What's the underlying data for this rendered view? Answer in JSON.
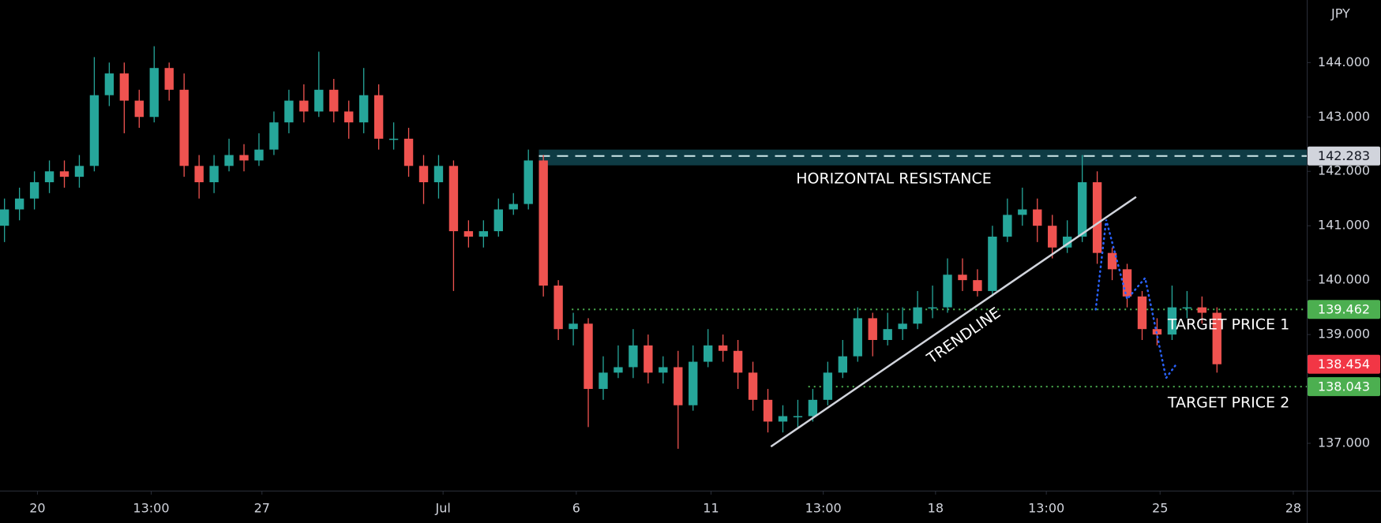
{
  "chart_data": {
    "type": "candlestick",
    "currency": "JPY",
    "up_color": "#26a69a",
    "down_color": "#ef5350",
    "open": [
      141.0,
      141.3,
      141.5,
      141.8,
      142.0,
      141.9,
      142.1,
      143.4,
      143.8,
      143.3,
      143.0,
      143.9,
      143.5,
      142.1,
      141.8,
      142.1,
      142.3,
      142.2,
      142.4,
      142.9,
      143.3,
      143.1,
      143.5,
      143.1,
      142.9,
      143.4,
      142.6,
      142.6,
      142.1,
      141.8,
      142.1,
      140.9,
      140.8,
      140.9,
      141.3,
      141.4,
      142.2,
      139.9,
      139.1,
      139.2,
      138.0,
      138.3,
      138.4,
      138.8,
      138.3,
      138.4,
      137.7,
      138.5,
      138.8,
      138.7,
      138.3,
      137.8,
      137.4,
      137.5,
      137.5,
      137.8,
      138.3,
      138.6,
      139.3,
      138.9,
      139.1,
      139.2,
      139.5,
      139.5,
      140.1,
      140.0,
      139.8,
      140.8,
      141.2,
      141.3,
      141.0,
      140.6,
      140.8,
      141.8,
      140.5,
      140.2,
      139.7,
      139.1,
      139.0,
      139.5,
      139.5,
      139.4
    ],
    "high": [
      141.5,
      141.7,
      142.0,
      142.2,
      142.2,
      142.3,
      144.1,
      144.0,
      144.0,
      143.5,
      144.3,
      144.0,
      143.8,
      142.3,
      142.3,
      142.6,
      142.5,
      142.7,
      143.1,
      143.5,
      143.6,
      144.2,
      143.7,
      143.3,
      143.9,
      143.6,
      142.9,
      142.8,
      142.3,
      142.3,
      142.2,
      141.1,
      141.1,
      141.5,
      141.6,
      142.4,
      142.3,
      140.0,
      139.4,
      139.3,
      138.6,
      138.8,
      139.1,
      139.0,
      138.6,
      138.7,
      138.8,
      139.1,
      139.0,
      138.9,
      138.5,
      138.0,
      137.7,
      137.8,
      138.0,
      138.5,
      138.9,
      139.5,
      139.4,
      139.4,
      139.5,
      139.8,
      139.9,
      140.4,
      140.4,
      140.2,
      141.0,
      141.5,
      141.7,
      141.5,
      141.2,
      141.1,
      142.3,
      142.0,
      140.6,
      140.3,
      139.8,
      139.3,
      139.9,
      139.8,
      139.7,
      139.5
    ],
    "low": [
      140.7,
      141.1,
      141.3,
      141.6,
      141.7,
      141.7,
      142.0,
      143.2,
      142.7,
      142.8,
      142.9,
      143.3,
      141.9,
      141.5,
      141.6,
      142.0,
      142.0,
      142.1,
      142.3,
      142.7,
      142.9,
      143.0,
      142.9,
      142.6,
      142.7,
      142.4,
      142.4,
      141.9,
      141.4,
      141.5,
      139.8,
      140.6,
      140.6,
      140.8,
      141.2,
      141.3,
      139.7,
      138.9,
      138.8,
      137.3,
      137.8,
      138.2,
      138.2,
      138.1,
      138.1,
      136.9,
      137.6,
      138.4,
      138.5,
      138.0,
      137.6,
      137.2,
      137.2,
      137.3,
      137.4,
      137.7,
      138.2,
      138.5,
      138.6,
      138.8,
      138.9,
      139.1,
      139.3,
      139.4,
      139.8,
      139.7,
      139.7,
      140.7,
      141.0,
      140.7,
      140.4,
      140.5,
      140.7,
      140.3,
      140.0,
      139.5,
      138.9,
      138.8,
      138.9,
      139.3,
      139.2,
      138.3
    ],
    "close": [
      141.3,
      141.5,
      141.8,
      142.0,
      141.9,
      142.1,
      143.4,
      143.8,
      143.3,
      143.0,
      143.9,
      143.5,
      142.1,
      141.8,
      142.1,
      142.3,
      142.2,
      142.4,
      142.9,
      143.3,
      143.1,
      143.5,
      143.1,
      142.9,
      143.4,
      142.6,
      142.6,
      142.1,
      141.8,
      142.1,
      140.9,
      140.8,
      140.9,
      141.3,
      141.4,
      142.2,
      139.9,
      139.1,
      139.2,
      138.0,
      138.3,
      138.4,
      138.8,
      138.3,
      138.4,
      137.7,
      138.5,
      138.8,
      138.7,
      138.3,
      137.8,
      137.4,
      137.5,
      137.5,
      137.8,
      138.3,
      138.6,
      139.3,
      138.9,
      139.1,
      139.2,
      139.5,
      139.5,
      140.1,
      140.0,
      139.8,
      140.8,
      141.2,
      141.3,
      141.0,
      140.6,
      140.8,
      141.8,
      140.5,
      140.2,
      139.7,
      139.1,
      139.0,
      139.5,
      139.5,
      139.4,
      138.454
    ],
    "xlim": [
      -0.3,
      87
    ],
    "ylim": [
      136.13,
      145.15
    ],
    "xticks": [
      {
        "value": 2.2,
        "label": "20"
      },
      {
        "value": 9.8,
        "label": "13:00"
      },
      {
        "value": 17.2,
        "label": "27"
      },
      {
        "value": 29.3,
        "label": "Jul"
      },
      {
        "value": 38.2,
        "label": "6"
      },
      {
        "value": 47.2,
        "label": "11"
      },
      {
        "value": 54.7,
        "label": "13:00"
      },
      {
        "value": 62.2,
        "label": "18"
      },
      {
        "value": 69.6,
        "label": "13:00"
      },
      {
        "value": 77.2,
        "label": "25"
      },
      {
        "value": 86.1,
        "label": "28"
      }
    ],
    "yticks": [
      {
        "value": 137,
        "label": "137.000"
      },
      {
        "value": 138,
        "label": "138.000"
      },
      {
        "value": 139,
        "label": "139.000"
      },
      {
        "value": 140,
        "label": "140.000"
      },
      {
        "value": 141,
        "label": "141.000"
      },
      {
        "value": 142,
        "label": "142.000"
      },
      {
        "value": 143,
        "label": "143.000"
      },
      {
        "value": 144,
        "label": "144.000"
      }
    ],
    "resistance": {
      "value": 142.283,
      "zone": [
        142.11,
        142.4
      ],
      "start": 35.7,
      "text": "HORIZONTAL RESISTANCE"
    },
    "targets": [
      {
        "value": 139.462,
        "start": 37.9,
        "text": "TARGET PRICE 1"
      },
      {
        "value": 138.043,
        "start": 53.7,
        "text": "TARGET PRICE 2"
      }
    ],
    "last_price": 138.454,
    "trendline": {
      "x": [
        51.2,
        75.6
      ],
      "y": [
        136.94,
        141.53
      ],
      "text": "TRENDLINE"
    },
    "projection": {
      "x": [
        72.9,
        73.6,
        75.0,
        76.2,
        77.6,
        78.3
      ],
      "y": [
        139.46,
        141.11,
        139.65,
        140.04,
        138.2,
        138.46
      ]
    }
  }
}
